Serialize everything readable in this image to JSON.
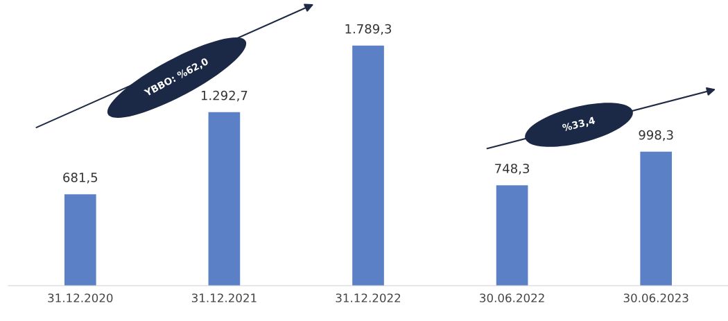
{
  "chart_data": {
    "type": "bar",
    "categories": [
      "31.12.2020",
      "31.12.2021",
      "31.12.2022",
      "30.06.2022",
      "30.06.2023"
    ],
    "values": [
      681.5,
      1292.7,
      1789.3,
      748.3,
      998.3
    ],
    "value_labels": [
      "681,5",
      "1.292,7",
      "1.789,3",
      "748,3",
      "998,3"
    ],
    "color": "#5b80c6",
    "annotations": [
      "YBBO: %62,0",
      "%33,4"
    ]
  }
}
